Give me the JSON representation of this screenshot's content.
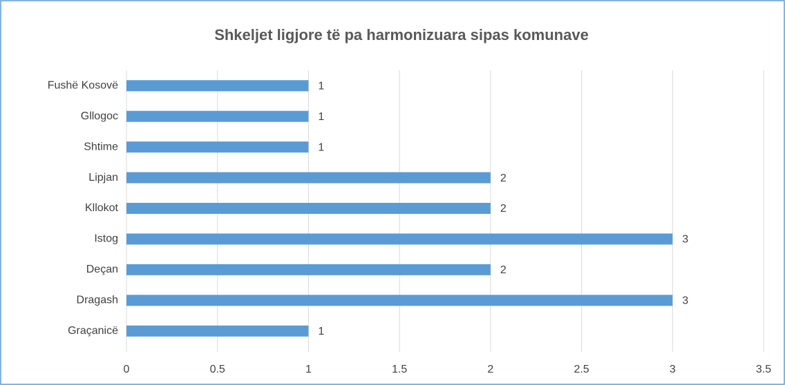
{
  "chart_data": {
    "type": "bar",
    "orientation": "horizontal",
    "title": "Shkeljet ligjore të pa harmonizuara sipas komunave",
    "categories": [
      "Fushë Kosovë",
      "Gllogoc",
      "Shtime",
      "Lipjan",
      "Kllokot",
      "Istog",
      "Deçan",
      "Dragash",
      "Graçanicë"
    ],
    "values": [
      1,
      1,
      1,
      2,
      2,
      3,
      2,
      3,
      1
    ],
    "color": "#5b9bd5",
    "xlim": [
      0,
      3.5
    ],
    "xticks": [
      0,
      0.5,
      1,
      1.5,
      2,
      2.5,
      3,
      3.5
    ],
    "grid": true
  }
}
